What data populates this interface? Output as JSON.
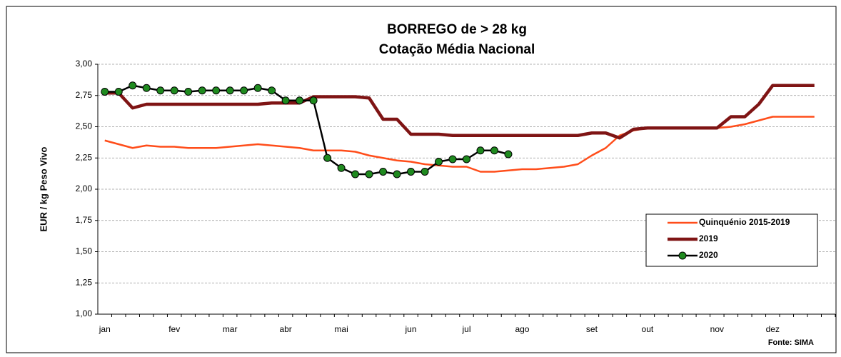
{
  "chart_data": {
    "type": "line",
    "title": "BORREGO de > 28 kg",
    "subtitle": "Cotação Média Nacional",
    "ylabel": "EUR / kg Peso Vivo",
    "source": "Fonte: SIMA",
    "categories": [
      "jan",
      null,
      null,
      null,
      null,
      "fev",
      null,
      null,
      null,
      "mar",
      null,
      null,
      null,
      "abr",
      null,
      null,
      null,
      "mai",
      null,
      null,
      null,
      null,
      "jun",
      null,
      null,
      null,
      "jul",
      null,
      null,
      null,
      "ago",
      null,
      null,
      null,
      null,
      "set",
      null,
      null,
      null,
      "out",
      null,
      null,
      null,
      null,
      "nov",
      null,
      null,
      null,
      "dez",
      null,
      null,
      null,
      null
    ],
    "series": [
      {
        "name": "Quinquénio 2015-2019",
        "color": "#ff4d1a",
        "width": 2.5,
        "markers": false,
        "values": [
          2.39,
          2.36,
          2.33,
          2.35,
          2.34,
          2.34,
          2.33,
          2.33,
          2.33,
          2.34,
          2.35,
          2.36,
          2.35,
          2.34,
          2.33,
          2.31,
          2.31,
          2.31,
          2.3,
          2.27,
          2.25,
          2.23,
          2.22,
          2.2,
          2.19,
          2.18,
          2.18,
          2.14,
          2.14,
          2.15,
          2.16,
          2.16,
          2.17,
          2.18,
          2.2,
          2.27,
          2.33,
          2.43,
          2.47,
          2.49,
          2.49,
          2.49,
          2.49,
          2.49,
          2.49,
          2.5,
          2.52,
          2.55,
          2.58,
          2.58,
          2.58,
          2.58,
          null
        ]
      },
      {
        "name": "2019",
        "color": "#7f1414",
        "width": 4.5,
        "markers": false,
        "values": [
          2.77,
          2.77,
          2.65,
          2.68,
          2.68,
          2.68,
          2.68,
          2.68,
          2.68,
          2.68,
          2.68,
          2.68,
          2.69,
          2.69,
          2.69,
          2.74,
          2.74,
          2.74,
          2.74,
          2.73,
          2.56,
          2.56,
          2.44,
          2.44,
          2.44,
          2.43,
          2.43,
          2.43,
          2.43,
          2.43,
          2.43,
          2.43,
          2.43,
          2.43,
          2.43,
          2.45,
          2.45,
          2.41,
          2.48,
          2.49,
          2.49,
          2.49,
          2.49,
          2.49,
          2.49,
          2.58,
          2.58,
          2.68,
          2.83,
          2.83,
          2.83,
          2.83,
          null
        ]
      },
      {
        "name": "2020",
        "color": "#000000",
        "marker_color": "#1f8a1f",
        "width": 2.5,
        "markers": true,
        "values": [
          2.78,
          2.78,
          2.83,
          2.81,
          2.79,
          2.79,
          2.78,
          2.79,
          2.79,
          2.79,
          2.79,
          2.81,
          2.79,
          2.71,
          2.71,
          2.71,
          2.25,
          2.17,
          2.12,
          2.12,
          2.14,
          2.12,
          2.14,
          2.14,
          2.22,
          2.24,
          2.24,
          2.31,
          2.31,
          2.28,
          null,
          null,
          null,
          null,
          null,
          null,
          null,
          null,
          null,
          null,
          null,
          null,
          null,
          null,
          null,
          null,
          null,
          null,
          null,
          null,
          null,
          null,
          null
        ]
      }
    ],
    "ylim": [
      1,
      3
    ],
    "yticks": [
      {
        "value": 1,
        "label": "1,00"
      },
      {
        "value": 1.25,
        "label": "1,25"
      },
      {
        "value": 1.5,
        "label": "1,50"
      },
      {
        "value": 1.75,
        "label": "1,75"
      },
      {
        "value": 2,
        "label": "2,00"
      },
      {
        "value": 2.25,
        "label": "2,25"
      },
      {
        "value": 2.5,
        "label": "2,50"
      },
      {
        "value": 2.75,
        "label": "2,75"
      },
      {
        "value": 3,
        "label": "3,00"
      }
    ],
    "grid": true,
    "legend": "lower right"
  }
}
